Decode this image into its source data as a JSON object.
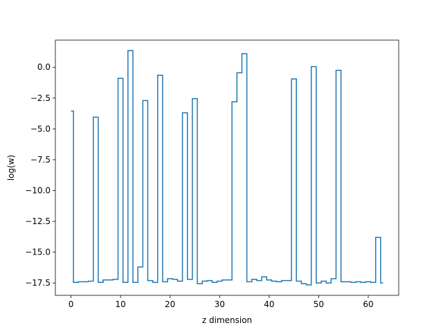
{
  "chart_data": {
    "type": "line",
    "drawstyle": "steps-mid",
    "title": "",
    "xlabel": "z dimension",
    "ylabel": "log(w)",
    "xlim": [
      -3.15,
      66.15
    ],
    "ylim": [
      -18.5,
      2.2
    ],
    "xticks": [
      0,
      10,
      20,
      30,
      40,
      50,
      60
    ],
    "xtick_labels": [
      "0",
      "10",
      "20",
      "30",
      "40",
      "50",
      "60"
    ],
    "yticks": [
      0.0,
      -2.5,
      -5.0,
      -7.5,
      -10.0,
      -12.5,
      -15.0,
      -17.5
    ],
    "ytick_labels": [
      "0.0",
      "−2.5",
      "−5.0",
      "−7.5",
      "−10.0",
      "−12.5",
      "−15.0",
      "−17.5"
    ],
    "grid": false,
    "series": [
      {
        "color": "#1f77b4",
        "x": [
          0,
          1,
          2,
          3,
          4,
          5,
          6,
          7,
          8,
          9,
          10,
          11,
          12,
          13,
          14,
          15,
          16,
          17,
          18,
          19,
          20,
          21,
          22,
          23,
          24,
          25,
          26,
          27,
          28,
          29,
          30,
          31,
          32,
          33,
          34,
          35,
          36,
          37,
          38,
          39,
          40,
          41,
          42,
          43,
          44,
          45,
          46,
          47,
          48,
          49,
          50,
          51,
          52,
          53,
          54,
          55,
          56,
          57,
          58,
          59,
          60,
          61,
          62,
          63
        ],
        "y": [
          -3.55,
          -17.45,
          -17.4,
          -17.4,
          -17.35,
          -4.05,
          -17.45,
          -17.25,
          -17.25,
          -17.2,
          -0.9,
          -17.45,
          1.35,
          -17.45,
          -16.2,
          -2.7,
          -17.3,
          -17.45,
          -0.65,
          -17.4,
          -17.15,
          -17.2,
          -17.35,
          -3.7,
          -17.2,
          -2.55,
          -17.55,
          -17.35,
          -17.3,
          -17.45,
          -17.35,
          -17.25,
          -17.25,
          -2.8,
          -0.45,
          1.1,
          -17.4,
          -17.2,
          -17.3,
          -17.0,
          -17.25,
          -17.35,
          -17.4,
          -17.3,
          -17.3,
          -0.95,
          -17.35,
          -17.55,
          -17.65,
          0.05,
          -17.5,
          -17.35,
          -17.5,
          -17.15,
          -0.25,
          -17.4,
          -17.4,
          -17.45,
          -17.4,
          -17.45,
          -17.4,
          -17.45,
          -13.8,
          -17.5
        ]
      }
    ]
  }
}
